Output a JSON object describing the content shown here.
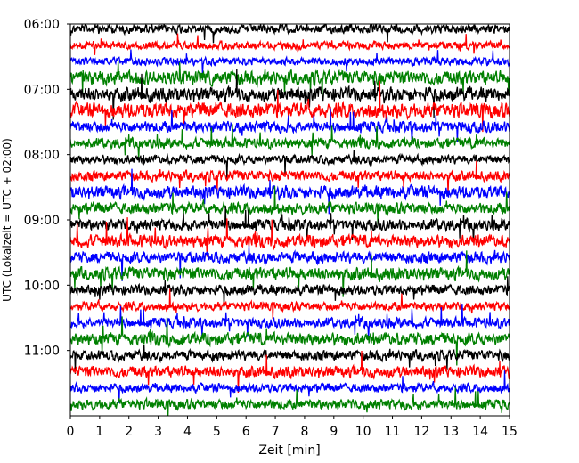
{
  "chart_data": {
    "type": "line",
    "title": "",
    "xlabel": "Zeit  [min]",
    "ylabel": "UTC (Lokalzeit = UTC + 02:00)",
    "xlim": [
      0,
      15
    ],
    "x_ticks": [
      0,
      1,
      2,
      3,
      4,
      5,
      6,
      7,
      8,
      9,
      10,
      11,
      12,
      13,
      14,
      15
    ],
    "x_tick_labels": [
      "0",
      "1",
      "2",
      "3",
      "4",
      "5",
      "6",
      "7",
      "8",
      "9",
      "10",
      "11",
      "12",
      "13",
      "14",
      "15"
    ],
    "y_ticks": [
      "06:00",
      "07:00",
      "08:00",
      "09:00",
      "10:00",
      "11:00"
    ],
    "y_start": "06:00",
    "y_end": "12:00",
    "y_inverted": true,
    "trace_interval_min": 15,
    "trace_color_cycle": [
      "#000000",
      "#ff0000",
      "#0000ff",
      "#008000"
    ],
    "traces": [
      {
        "start": "06:00",
        "color": "#000000",
        "amplitude": 0.35
      },
      {
        "start": "06:15",
        "color": "#ff0000",
        "amplitude": 0.3
      },
      {
        "start": "06:30",
        "color": "#0000ff",
        "amplitude": 0.3
      },
      {
        "start": "06:45",
        "color": "#008000",
        "amplitude": 0.55
      },
      {
        "start": "07:00",
        "color": "#000000",
        "amplitude": 0.55
      },
      {
        "start": "07:15",
        "color": "#ff0000",
        "amplitude": 0.6
      },
      {
        "start": "07:30",
        "color": "#0000ff",
        "amplitude": 0.45
      },
      {
        "start": "07:45",
        "color": "#008000",
        "amplitude": 0.4
      },
      {
        "start": "08:00",
        "color": "#000000",
        "amplitude": 0.35
      },
      {
        "start": "08:15",
        "color": "#ff0000",
        "amplitude": 0.4
      },
      {
        "start": "08:30",
        "color": "#0000ff",
        "amplitude": 0.5
      },
      {
        "start": "08:45",
        "color": "#008000",
        "amplitude": 0.45
      },
      {
        "start": "09:00",
        "color": "#000000",
        "amplitude": 0.45
      },
      {
        "start": "09:15",
        "color": "#ff0000",
        "amplitude": 0.5
      },
      {
        "start": "09:30",
        "color": "#0000ff",
        "amplitude": 0.45
      },
      {
        "start": "09:45",
        "color": "#008000",
        "amplitude": 0.5
      },
      {
        "start": "10:00",
        "color": "#000000",
        "amplitude": 0.4
      },
      {
        "start": "10:15",
        "color": "#ff0000",
        "amplitude": 0.35
      },
      {
        "start": "10:30",
        "color": "#0000ff",
        "amplitude": 0.4
      },
      {
        "start": "10:45",
        "color": "#008000",
        "amplitude": 0.5
      },
      {
        "start": "11:00",
        "color": "#000000",
        "amplitude": 0.4
      },
      {
        "start": "11:15",
        "color": "#ff0000",
        "amplitude": 0.45
      },
      {
        "start": "11:30",
        "color": "#0000ff",
        "amplitude": 0.35
      },
      {
        "start": "11:45",
        "color": "#008000",
        "amplitude": 0.4
      }
    ],
    "grid": false,
    "legend": "none"
  }
}
